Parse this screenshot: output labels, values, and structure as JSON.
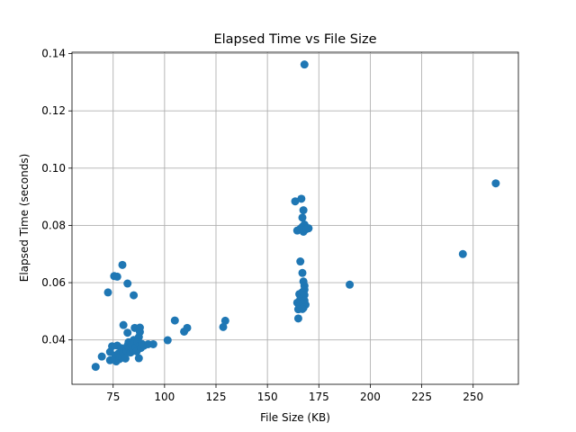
{
  "chart_data": {
    "type": "scatter",
    "title": "Elapsed Time vs File Size",
    "xlabel": "File Size (KB)",
    "ylabel": "Elapsed Time (seconds)",
    "xlim": [
      55,
      272
    ],
    "ylim": [
      0.0245,
      0.1405
    ],
    "xticks": [
      75,
      100,
      125,
      150,
      175,
      200,
      225,
      250
    ],
    "xtick_labels": [
      "75",
      "100",
      "125",
      "150",
      "175",
      "200",
      "225",
      "250"
    ],
    "yticks": [
      0.04,
      0.06,
      0.08,
      0.1,
      0.12,
      0.14
    ],
    "ytick_labels": [
      "0.04",
      "0.06",
      "0.08",
      "0.10",
      "0.12",
      "0.14"
    ],
    "grid": true,
    "marker_color": "#1f77b4",
    "series": [
      {
        "points": [
          [
            66.5,
            0.0306
          ],
          [
            69.5,
            0.0342
          ],
          [
            73.5,
            0.0329
          ],
          [
            73.5,
            0.0358
          ],
          [
            74.5,
            0.0378
          ],
          [
            75.5,
            0.0332
          ],
          [
            76.0,
            0.0345
          ],
          [
            76.5,
            0.0325
          ],
          [
            77.0,
            0.038
          ],
          [
            77.5,
            0.0352
          ],
          [
            78.0,
            0.0333
          ],
          [
            78.5,
            0.0342
          ],
          [
            79.0,
            0.0371
          ],
          [
            79.5,
            0.0338
          ],
          [
            80.0,
            0.0355
          ],
          [
            80.5,
            0.0346
          ],
          [
            81.0,
            0.0335
          ],
          [
            81.5,
            0.0362
          ],
          [
            82.0,
            0.038
          ],
          [
            82.5,
            0.0392
          ],
          [
            83.0,
            0.0372
          ],
          [
            83.5,
            0.0356
          ],
          [
            84.0,
            0.0384
          ],
          [
            84.5,
            0.0366
          ],
          [
            85.0,
            0.04
          ],
          [
            85.5,
            0.0388
          ],
          [
            86.0,
            0.0374
          ],
          [
            86.5,
            0.036
          ],
          [
            87.0,
            0.0392
          ],
          [
            87.5,
            0.041
          ],
          [
            88.0,
            0.038
          ],
          [
            88.5,
            0.0372
          ],
          [
            89.0,
            0.0386
          ],
          [
            90.0,
            0.038
          ],
          [
            92.0,
            0.0385
          ],
          [
            94.5,
            0.0385
          ],
          [
            87.5,
            0.0336
          ],
          [
            80.0,
            0.0452
          ],
          [
            82.0,
            0.0425
          ],
          [
            85.5,
            0.0442
          ],
          [
            88.0,
            0.0443
          ],
          [
            88.0,
            0.0428
          ],
          [
            72.5,
            0.0566
          ],
          [
            75.5,
            0.0623
          ],
          [
            77.0,
            0.0621
          ],
          [
            79.5,
            0.0662
          ],
          [
            82.0,
            0.0597
          ],
          [
            85.0,
            0.0556
          ],
          [
            101.5,
            0.0399
          ],
          [
            105.0,
            0.0468
          ],
          [
            109.5,
            0.0429
          ],
          [
            111.0,
            0.0442
          ],
          [
            128.5,
            0.0445
          ],
          [
            129.5,
            0.0467
          ],
          [
            163.5,
            0.0884
          ],
          [
            164.5,
            0.0782
          ],
          [
            166.5,
            0.0893
          ],
          [
            166.0,
            0.0788
          ],
          [
            167.0,
            0.0827
          ],
          [
            167.5,
            0.0853
          ],
          [
            167.0,
            0.0795
          ],
          [
            168.0,
            0.0803
          ],
          [
            168.5,
            0.0786
          ],
          [
            167.5,
            0.0778
          ],
          [
            169.0,
            0.0788
          ],
          [
            170.0,
            0.079
          ],
          [
            166.0,
            0.0674
          ],
          [
            167.0,
            0.0634
          ],
          [
            167.5,
            0.0604
          ],
          [
            168.0,
            0.0589
          ],
          [
            168.0,
            0.0575
          ],
          [
            167.0,
            0.0567
          ],
          [
            165.5,
            0.056
          ],
          [
            168.0,
            0.0557
          ],
          [
            166.0,
            0.0542
          ],
          [
            168.0,
            0.0537
          ],
          [
            164.5,
            0.053
          ],
          [
            167.0,
            0.0527
          ],
          [
            168.5,
            0.0523
          ],
          [
            165.5,
            0.0518
          ],
          [
            167.5,
            0.0512
          ],
          [
            165.0,
            0.0507
          ],
          [
            165.0,
            0.0475
          ],
          [
            167.0,
            0.0508
          ],
          [
            168.0,
            0.1362
          ],
          [
            190.0,
            0.0593
          ],
          [
            245.0,
            0.07
          ],
          [
            261.0,
            0.0947
          ]
        ]
      }
    ]
  }
}
